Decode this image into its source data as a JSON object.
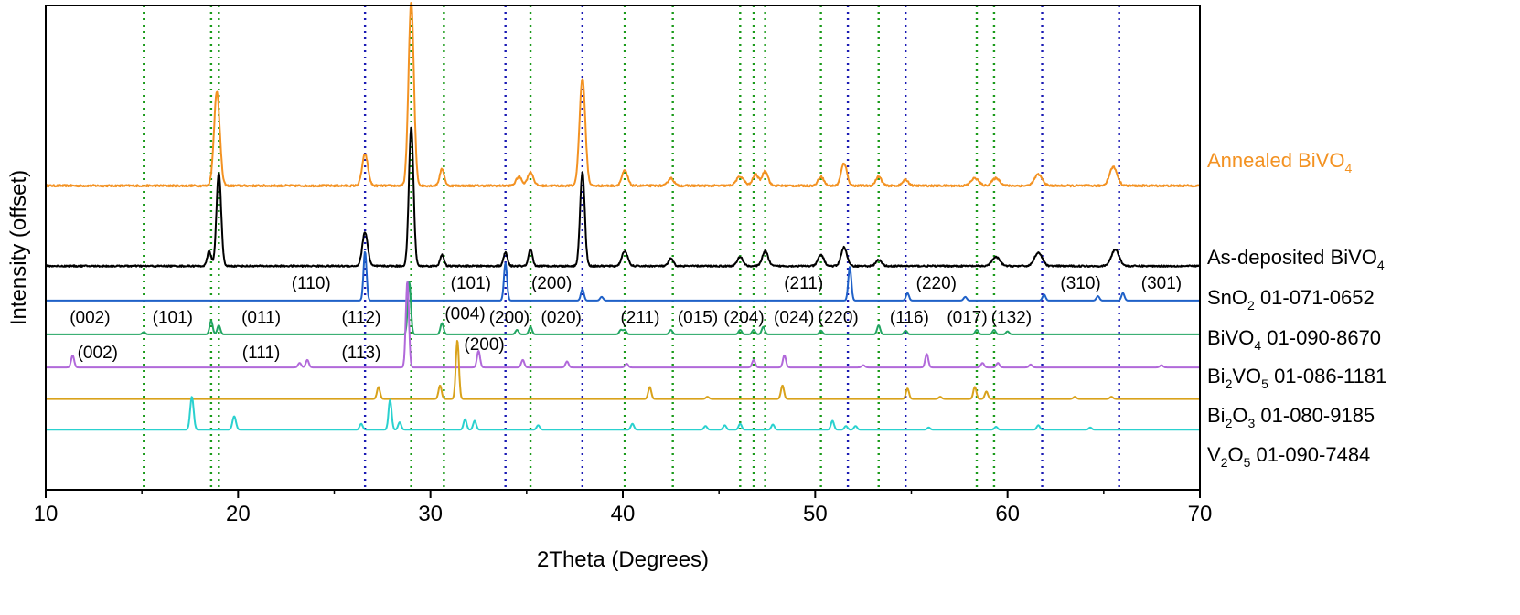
{
  "chart_data": {
    "type": "line",
    "xlabel": "2Theta (Degrees)",
    "ylabel": "Intensity (offset)",
    "xlim": [
      10,
      70
    ],
    "xticks": [
      10,
      20,
      30,
      40,
      50,
      60,
      70
    ],
    "y_axis_ticks": "none",
    "grid": false,
    "legend": "labels to the right of each trace",
    "reference_lines": {
      "green_dotted": [
        15.1,
        18.6,
        19.0,
        29.0,
        30.7,
        35.2,
        40.1,
        42.6,
        46.1,
        46.8,
        47.4,
        50.3,
        53.3,
        58.4,
        59.3
      ],
      "blue_dotted": [
        26.6,
        33.9,
        37.9,
        51.7,
        54.7,
        61.8,
        65.8
      ],
      "green_color": "#1a9a1a",
      "blue_color": "#1a1ab4"
    },
    "series": [
      {
        "label_main": "Annealed BiVO",
        "label_sub": "4",
        "label_rest": "",
        "color": "#f39222",
        "label_color": "#f39222",
        "baseline": 4.05,
        "noise": 0.012,
        "peaks": [
          [
            18.9,
            1.25,
            0.15
          ],
          [
            26.6,
            0.42,
            0.15
          ],
          [
            29.0,
            2.45,
            0.14
          ],
          [
            30.6,
            0.22,
            0.12
          ],
          [
            34.6,
            0.12,
            0.15
          ],
          [
            35.2,
            0.18,
            0.15
          ],
          [
            37.9,
            1.43,
            0.15
          ],
          [
            40.1,
            0.2,
            0.15
          ],
          [
            42.5,
            0.1,
            0.15
          ],
          [
            46.1,
            0.12,
            0.2
          ],
          [
            46.9,
            0.15,
            0.15
          ],
          [
            47.4,
            0.2,
            0.15
          ],
          [
            50.3,
            0.12,
            0.15
          ],
          [
            51.5,
            0.3,
            0.15
          ],
          [
            53.3,
            0.12,
            0.15
          ],
          [
            54.7,
            0.08,
            0.15
          ],
          [
            58.3,
            0.1,
            0.2
          ],
          [
            59.4,
            0.1,
            0.2
          ],
          [
            61.6,
            0.15,
            0.2
          ],
          [
            65.5,
            0.25,
            0.2
          ]
        ]
      },
      {
        "label_main": "As-deposited BiVO",
        "label_sub": "4",
        "label_rest": "",
        "color": "#000000",
        "label_color": "#000000",
        "baseline": 2.98,
        "noise": 0.01,
        "peaks": [
          [
            18.5,
            0.2,
            0.1
          ],
          [
            19.0,
            1.25,
            0.12
          ],
          [
            26.6,
            0.45,
            0.14
          ],
          [
            29.0,
            1.85,
            0.12
          ],
          [
            30.6,
            0.15,
            0.1
          ],
          [
            33.9,
            0.18,
            0.1
          ],
          [
            35.2,
            0.22,
            0.1
          ],
          [
            37.9,
            1.25,
            0.12
          ],
          [
            40.1,
            0.2,
            0.15
          ],
          [
            42.5,
            0.1,
            0.12
          ],
          [
            46.1,
            0.12,
            0.15
          ],
          [
            47.4,
            0.2,
            0.15
          ],
          [
            50.3,
            0.15,
            0.15
          ],
          [
            51.5,
            0.25,
            0.15
          ],
          [
            53.3,
            0.08,
            0.15
          ],
          [
            59.4,
            0.12,
            0.2
          ],
          [
            61.6,
            0.18,
            0.2
          ],
          [
            65.6,
            0.22,
            0.2
          ]
        ]
      },
      {
        "label_main": "SnO",
        "label_sub": "2",
        "label_rest": " 01-071-0652",
        "color": "#1f61c8",
        "label_color": "#000000",
        "baseline": 2.52,
        "noise": 0,
        "peaks": [
          [
            26.6,
            0.65,
            0.08
          ],
          [
            33.9,
            0.5,
            0.08
          ],
          [
            37.9,
            0.15,
            0.08
          ],
          [
            38.9,
            0.05,
            0.08
          ],
          [
            51.8,
            0.45,
            0.08
          ],
          [
            54.8,
            0.1,
            0.08
          ],
          [
            57.8,
            0.05,
            0.08
          ],
          [
            61.9,
            0.08,
            0.08
          ],
          [
            64.7,
            0.06,
            0.08
          ],
          [
            66.0,
            0.1,
            0.08
          ]
        ]
      },
      {
        "label_main": "BiVO",
        "label_sub": "4",
        "label_rest": " 01-090-8670",
        "color": "#22a562",
        "label_color": "#000000",
        "baseline": 2.07,
        "noise": 0,
        "peaks": [
          [
            15.1,
            0.03,
            0.08
          ],
          [
            18.6,
            0.18,
            0.08
          ],
          [
            19.0,
            0.12,
            0.08
          ],
          [
            28.9,
            0.7,
            0.08
          ],
          [
            30.6,
            0.15,
            0.08
          ],
          [
            34.5,
            0.06,
            0.08
          ],
          [
            35.2,
            0.1,
            0.08
          ],
          [
            39.9,
            0.06,
            0.08
          ],
          [
            40.1,
            0.06,
            0.08
          ],
          [
            42.5,
            0.06,
            0.08
          ],
          [
            46.1,
            0.06,
            0.08
          ],
          [
            46.8,
            0.06,
            0.08
          ],
          [
            47.3,
            0.1,
            0.08
          ],
          [
            50.3,
            0.05,
            0.08
          ],
          [
            53.3,
            0.12,
            0.08
          ],
          [
            54.7,
            0.05,
            0.08
          ],
          [
            58.4,
            0.06,
            0.08
          ],
          [
            59.3,
            0.06,
            0.08
          ],
          [
            60.0,
            0.04,
            0.08
          ]
        ]
      },
      {
        "label_main": "Bi",
        "label_sub": "2",
        "label_rest": "VO",
        "label_sub2": "5",
        "label_rest2": " 01-086-1181",
        "color": "#b169da",
        "label_color": "#000000",
        "baseline": 1.63,
        "noise": 0,
        "peaks": [
          [
            11.4,
            0.16,
            0.08
          ],
          [
            23.2,
            0.06,
            0.08
          ],
          [
            23.6,
            0.1,
            0.08
          ],
          [
            28.8,
            1.15,
            0.08
          ],
          [
            32.5,
            0.22,
            0.08
          ],
          [
            34.8,
            0.1,
            0.08
          ],
          [
            37.1,
            0.08,
            0.08
          ],
          [
            40.2,
            0.05,
            0.08
          ],
          [
            46.8,
            0.1,
            0.08
          ],
          [
            48.4,
            0.16,
            0.08
          ],
          [
            52.5,
            0.03,
            0.08
          ],
          [
            55.8,
            0.18,
            0.08
          ],
          [
            58.7,
            0.06,
            0.08
          ],
          [
            59.5,
            0.06,
            0.08
          ],
          [
            61.2,
            0.04,
            0.08
          ],
          [
            68.0,
            0.03,
            0.08
          ]
        ]
      },
      {
        "label_main": "Bi",
        "label_sub": "2",
        "label_rest": "O",
        "label_sub2": "3",
        "label_rest2": " 01-080-9185",
        "color": "#d9a21b",
        "label_color": "#000000",
        "baseline": 1.21,
        "noise": 0,
        "peaks": [
          [
            27.3,
            0.16,
            0.08
          ],
          [
            30.5,
            0.18,
            0.08
          ],
          [
            31.4,
            0.78,
            0.08
          ],
          [
            41.4,
            0.16,
            0.08
          ],
          [
            44.4,
            0.03,
            0.08
          ],
          [
            48.3,
            0.18,
            0.08
          ],
          [
            54.8,
            0.14,
            0.08
          ],
          [
            56.5,
            0.03,
            0.08
          ],
          [
            58.3,
            0.16,
            0.08
          ],
          [
            58.9,
            0.1,
            0.08
          ],
          [
            63.5,
            0.03,
            0.08
          ],
          [
            65.4,
            0.03,
            0.08
          ]
        ]
      },
      {
        "label_main": "V",
        "label_sub": "2",
        "label_rest": "O",
        "label_sub2": "5",
        "label_rest2": " 01-090-7484",
        "color": "#2ad1cf",
        "label_color": "#000000",
        "baseline": 0.8,
        "noise": 0,
        "peaks": [
          [
            17.6,
            0.44,
            0.09
          ],
          [
            19.8,
            0.18,
            0.09
          ],
          [
            26.4,
            0.08,
            0.08
          ],
          [
            27.9,
            0.4,
            0.08
          ],
          [
            28.4,
            0.1,
            0.08
          ],
          [
            31.8,
            0.14,
            0.08
          ],
          [
            32.3,
            0.12,
            0.08
          ],
          [
            35.6,
            0.06,
            0.08
          ],
          [
            40.5,
            0.08,
            0.08
          ],
          [
            44.3,
            0.05,
            0.08
          ],
          [
            45.3,
            0.06,
            0.08
          ],
          [
            46.1,
            0.08,
            0.08
          ],
          [
            47.8,
            0.07,
            0.08
          ],
          [
            50.9,
            0.12,
            0.08
          ],
          [
            51.6,
            0.05,
            0.08
          ],
          [
            52.1,
            0.05,
            0.08
          ],
          [
            55.9,
            0.03,
            0.08
          ],
          [
            59.4,
            0.04,
            0.08
          ],
          [
            61.6,
            0.06,
            0.08
          ],
          [
            64.3,
            0.03,
            0.08
          ]
        ]
      }
    ],
    "annotations": [
      {
        "text": "(110)",
        "x": 23.8,
        "y": 2.68
      },
      {
        "text": "(101)",
        "x": 32.1,
        "y": 2.68
      },
      {
        "text": "(200)",
        "x": 36.3,
        "y": 2.68
      },
      {
        "text": "(211)",
        "x": 49.4,
        "y": 2.68
      },
      {
        "text": "(220)",
        "x": 56.3,
        "y": 2.68
      },
      {
        "text": "(310)",
        "x": 63.8,
        "y": 2.68
      },
      {
        "text": "(301)",
        "x": 68.0,
        "y": 2.68
      },
      {
        "text": "(002)",
        "x": 12.3,
        "y": 2.22
      },
      {
        "text": "(101)",
        "x": 16.6,
        "y": 2.22
      },
      {
        "text": "(011)",
        "x": 21.2,
        "y": 2.22
      },
      {
        "text": "(112)",
        "x": 26.4,
        "y": 2.22
      },
      {
        "text": "(004)",
        "x": 31.8,
        "y": 2.27
      },
      {
        "text": "(200)",
        "x": 34.1,
        "y": 2.22
      },
      {
        "text": "(020)",
        "x": 36.8,
        "y": 2.22
      },
      {
        "text": "(211)",
        "x": 40.9,
        "y": 2.22
      },
      {
        "text": "(015)",
        "x": 43.9,
        "y": 2.22
      },
      {
        "text": "(204)",
        "x": 46.3,
        "y": 2.22
      },
      {
        "text": "(024)",
        "x": 48.9,
        "y": 2.22
      },
      {
        "text": "(220)",
        "x": 51.2,
        "y": 2.22
      },
      {
        "text": "(116)",
        "x": 54.9,
        "y": 2.22
      },
      {
        "text": "(017)",
        "x": 57.9,
        "y": 2.22
      },
      {
        "text": "(132)",
        "x": 60.2,
        "y": 2.22
      },
      {
        "text": "(002)",
        "x": 12.7,
        "y": 1.75
      },
      {
        "text": "(111)",
        "x": 21.2,
        "y": 1.75
      },
      {
        "text": "(113)",
        "x": 26.4,
        "y": 1.75
      },
      {
        "text": "(200)",
        "x": 32.8,
        "y": 1.86
      }
    ]
  }
}
